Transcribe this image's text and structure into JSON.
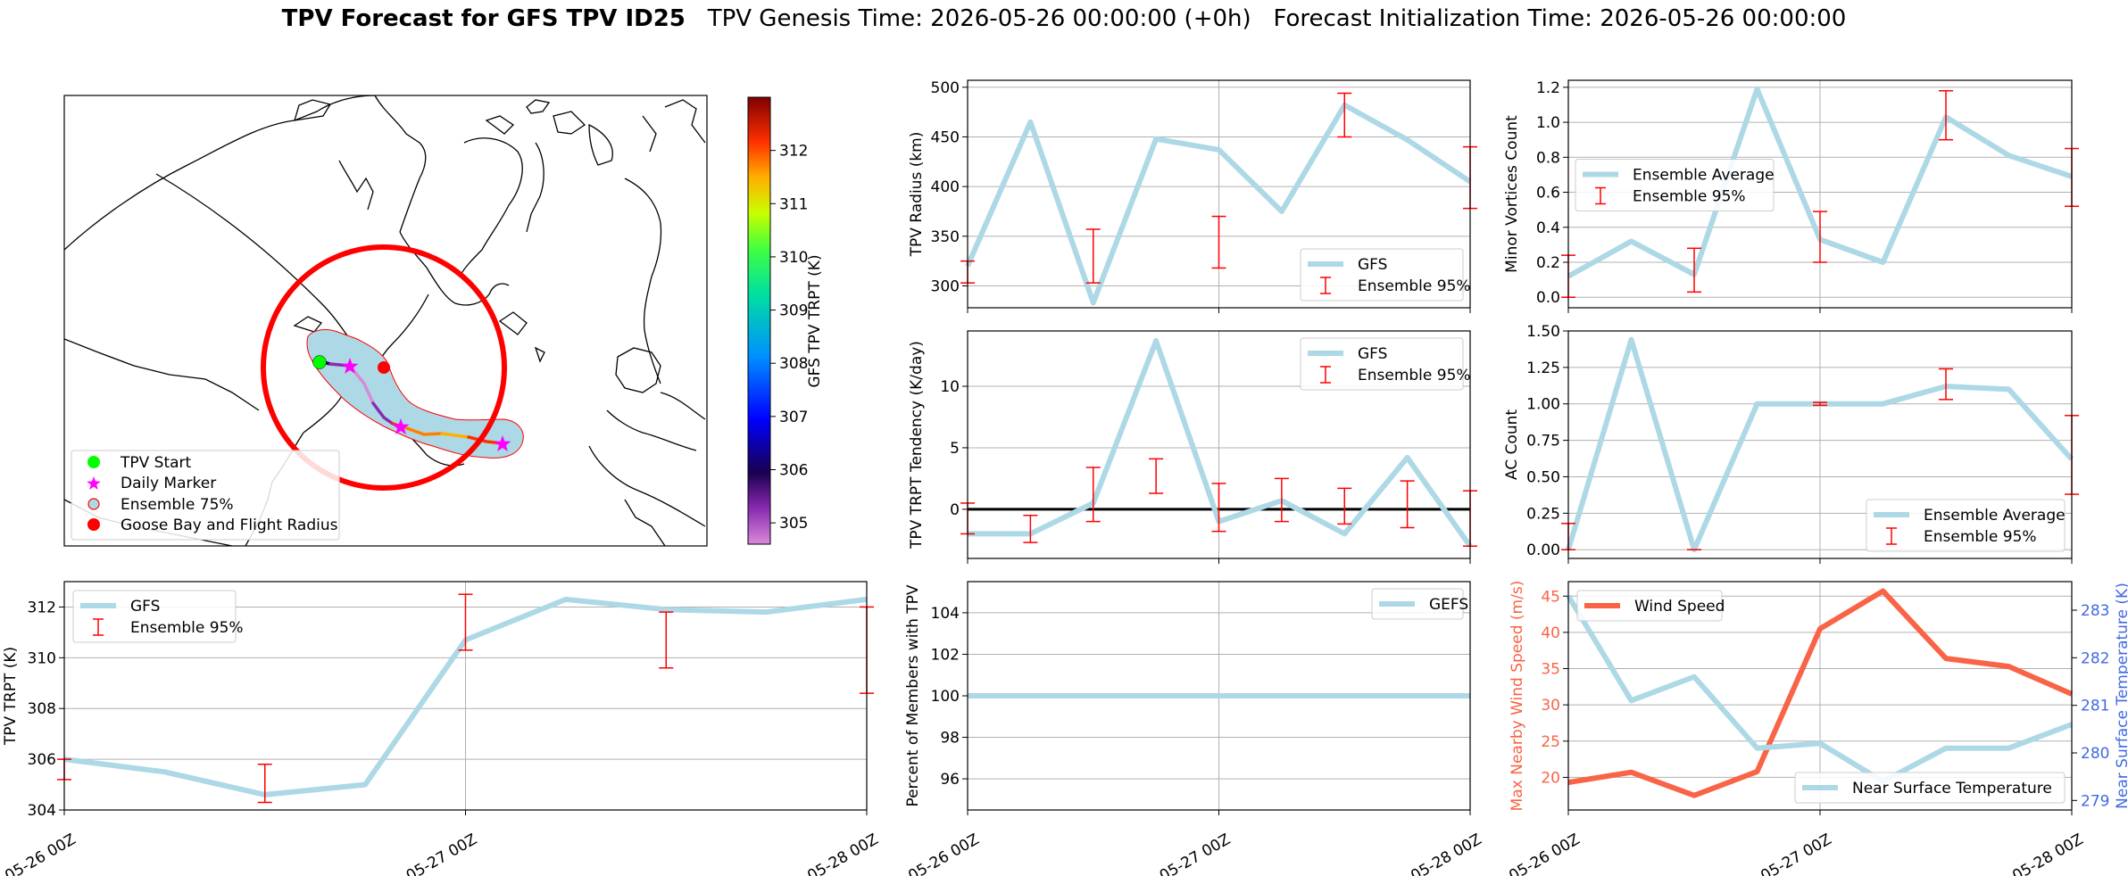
{
  "figure": {
    "title_bold": "TPV Forecast for GFS TPV ID25",
    "title_rest": "TPV Genesis Time: 2026-05-26 00:00:00 (+0h)   Forecast Initialization Time: 2026-05-26 00:00:00",
    "colors": {
      "gfs": "#add8e6",
      "ens": "#ff0000",
      "wind": "#f96346",
      "temp_axis": "#4169e1",
      "start": "#00ff00",
      "marker": "#ff00ff",
      "goose": "#ff0000"
    }
  },
  "chart_data": [
    {
      "id": "map",
      "type": "map",
      "legend": [
        "TPV Start",
        "Daily Marker",
        "Ensemble 75%",
        "Goose Bay and Flight Radius"
      ],
      "legend_position": "lower-left",
      "colorbar": {
        "label": "GFS TPV TRPT (K)",
        "ticks": [
          "305",
          "306",
          "307",
          "308",
          "309",
          "310",
          "311",
          "312"
        ],
        "range": [
          304.6,
          313
        ]
      }
    },
    {
      "id": "radius",
      "type": "line",
      "x": [
        "05-26 00Z",
        "05-26 06Z",
        "05-26 12Z",
        "05-26 18Z",
        "05-27 00Z",
        "05-27 06Z",
        "05-27 12Z",
        "05-27 18Z",
        "05-28 00Z"
      ],
      "series": [
        {
          "name": "GFS",
          "values": [
            320,
            465,
            283,
            448,
            437,
            375,
            482,
            447,
            405
          ]
        }
      ],
      "errorbars": {
        "name": "Ensemble 95%",
        "x_idx": [
          0,
          2,
          4,
          6,
          8
        ],
        "low": [
          303,
          303,
          318,
          450,
          378
        ],
        "high": [
          325,
          357,
          370,
          494,
          440
        ]
      },
      "ylabel": "TPV Radius (km)",
      "ylim": [
        278,
        507
      ],
      "yticks": [
        300,
        350,
        400,
        450,
        500
      ],
      "legend_position": "lower-right"
    },
    {
      "id": "minor",
      "type": "line",
      "series": [
        {
          "name": "Ensemble Average",
          "values": [
            0.12,
            0.32,
            0.13,
            1.19,
            0.33,
            0.2,
            1.03,
            0.81,
            0.69
          ]
        }
      ],
      "errorbars": {
        "name": "Ensemble 95%",
        "x_idx": [
          0,
          2,
          4,
          6,
          8
        ],
        "low": [
          0.0,
          0.03,
          0.2,
          0.9,
          0.52
        ],
        "high": [
          0.24,
          0.28,
          0.49,
          1.18,
          0.85
        ]
      },
      "ylabel": "Minor Vortices Count",
      "ylim": [
        -0.06,
        1.24
      ],
      "yticks": [
        0.0,
        0.2,
        0.4,
        0.6,
        0.8,
        1.0,
        1.2
      ],
      "legend_position": "center-left"
    },
    {
      "id": "tendency",
      "type": "line",
      "series": [
        {
          "name": "GFS",
          "values": [
            -2,
            -2,
            0.5,
            13.7,
            -1,
            0.7,
            -2,
            4.2,
            -3
          ]
        }
      ],
      "errorbars": {
        "name": "Ensemble 95%",
        "x_idx": [
          0,
          1,
          2,
          3,
          4,
          5,
          6,
          7,
          8
        ],
        "low": [
          -2,
          -2.7,
          -1,
          1.3,
          -1.8,
          -1,
          -1.2,
          -1.5,
          -3
        ],
        "high": [
          0.5,
          -0.5,
          3.4,
          4.1,
          2.1,
          2.5,
          1.7,
          2.3,
          1.5
        ]
      },
      "ylabel": "TPV TRPT Tendency (K/day)",
      "ylim": [
        -4,
        14.5
      ],
      "yticks": [
        -5,
        0,
        5,
        10
      ],
      "zero_line": true,
      "legend_position": "top-right"
    },
    {
      "id": "ac",
      "type": "line",
      "series": [
        {
          "name": "Ensemble Average",
          "values": [
            0.0,
            1.44,
            0.0,
            1.0,
            1.0,
            1.0,
            1.12,
            1.1,
            0.62
          ]
        }
      ],
      "errorbars": {
        "name": "Ensemble 95%",
        "x_idx": [
          0,
          2,
          4,
          6,
          8
        ],
        "low": [
          0.0,
          0.0,
          0.99,
          1.03,
          0.38
        ],
        "high": [
          0.18,
          0.0,
          1.01,
          1.24,
          0.92
        ]
      },
      "ylabel": "AC Count",
      "ylim": [
        -0.06,
        1.5
      ],
      "yticks": [
        0.0,
        0.25,
        0.5,
        0.75,
        1.0,
        1.25,
        1.5
      ],
      "legend_position": "lower-right"
    },
    {
      "id": "trpt",
      "type": "line",
      "series": [
        {
          "name": "GFS",
          "values": [
            306,
            305.5,
            304.6,
            305,
            310.7,
            312.3,
            311.9,
            311.8,
            312.3
          ]
        }
      ],
      "errorbars": {
        "name": "Ensemble 95%",
        "x_idx": [
          0,
          2,
          4,
          6,
          8
        ],
        "low": [
          305.2,
          304.3,
          310.3,
          309.6,
          308.6
        ],
        "high": [
          306,
          305.8,
          312.5,
          311.8,
          312
        ]
      },
      "ylabel": "TPV TRPT (K)",
      "ylim": [
        304,
        313
      ],
      "yticks": [
        304,
        306,
        308,
        310,
        312
      ],
      "xticks": [
        "05-26 00Z",
        "05-27 00Z",
        "05-28 00Z"
      ],
      "legend_position": "top-left"
    },
    {
      "id": "percent",
      "type": "line",
      "series": [
        {
          "name": "GEFS",
          "values": [
            100,
            100,
            100,
            100,
            100,
            100,
            100,
            100,
            100
          ]
        }
      ],
      "ylabel": "Percent of Members with TPV",
      "ylim": [
        94.5,
        105.5
      ],
      "yticks": [
        96,
        98,
        100,
        102,
        104
      ],
      "xticks": [
        "05-26 00Z",
        "05-27 00Z",
        "05-28 00Z"
      ],
      "legend_position": "top-right"
    },
    {
      "id": "wind",
      "type": "line",
      "series": [
        {
          "name": "Wind Speed",
          "axis": "left",
          "values": [
            19.3,
            20.7,
            17.5,
            20.8,
            40.5,
            45.7,
            36.4,
            35.3,
            31.5
          ]
        },
        {
          "name": "Near Surface Temperature",
          "axis": "right",
          "values": [
            283.3,
            281.1,
            281.6,
            280.1,
            280.2,
            279.4,
            280.1,
            280.1,
            280.6
          ]
        }
      ],
      "ylabel": "Max Nearby Wind Speed (m/s)",
      "ylim": [
        15.5,
        47
      ],
      "yticks": [
        20,
        25,
        30,
        35,
        40,
        45
      ],
      "y2label": "Near Surface Temperature (K)",
      "y2lim": [
        278.8,
        283.6
      ],
      "y2ticks": [
        279,
        280,
        281,
        282,
        283
      ],
      "xticks": [
        "05-26 00Z",
        "05-27 00Z",
        "05-28 00Z"
      ],
      "legend_positions": [
        "top-left",
        "lower-right"
      ]
    }
  ]
}
